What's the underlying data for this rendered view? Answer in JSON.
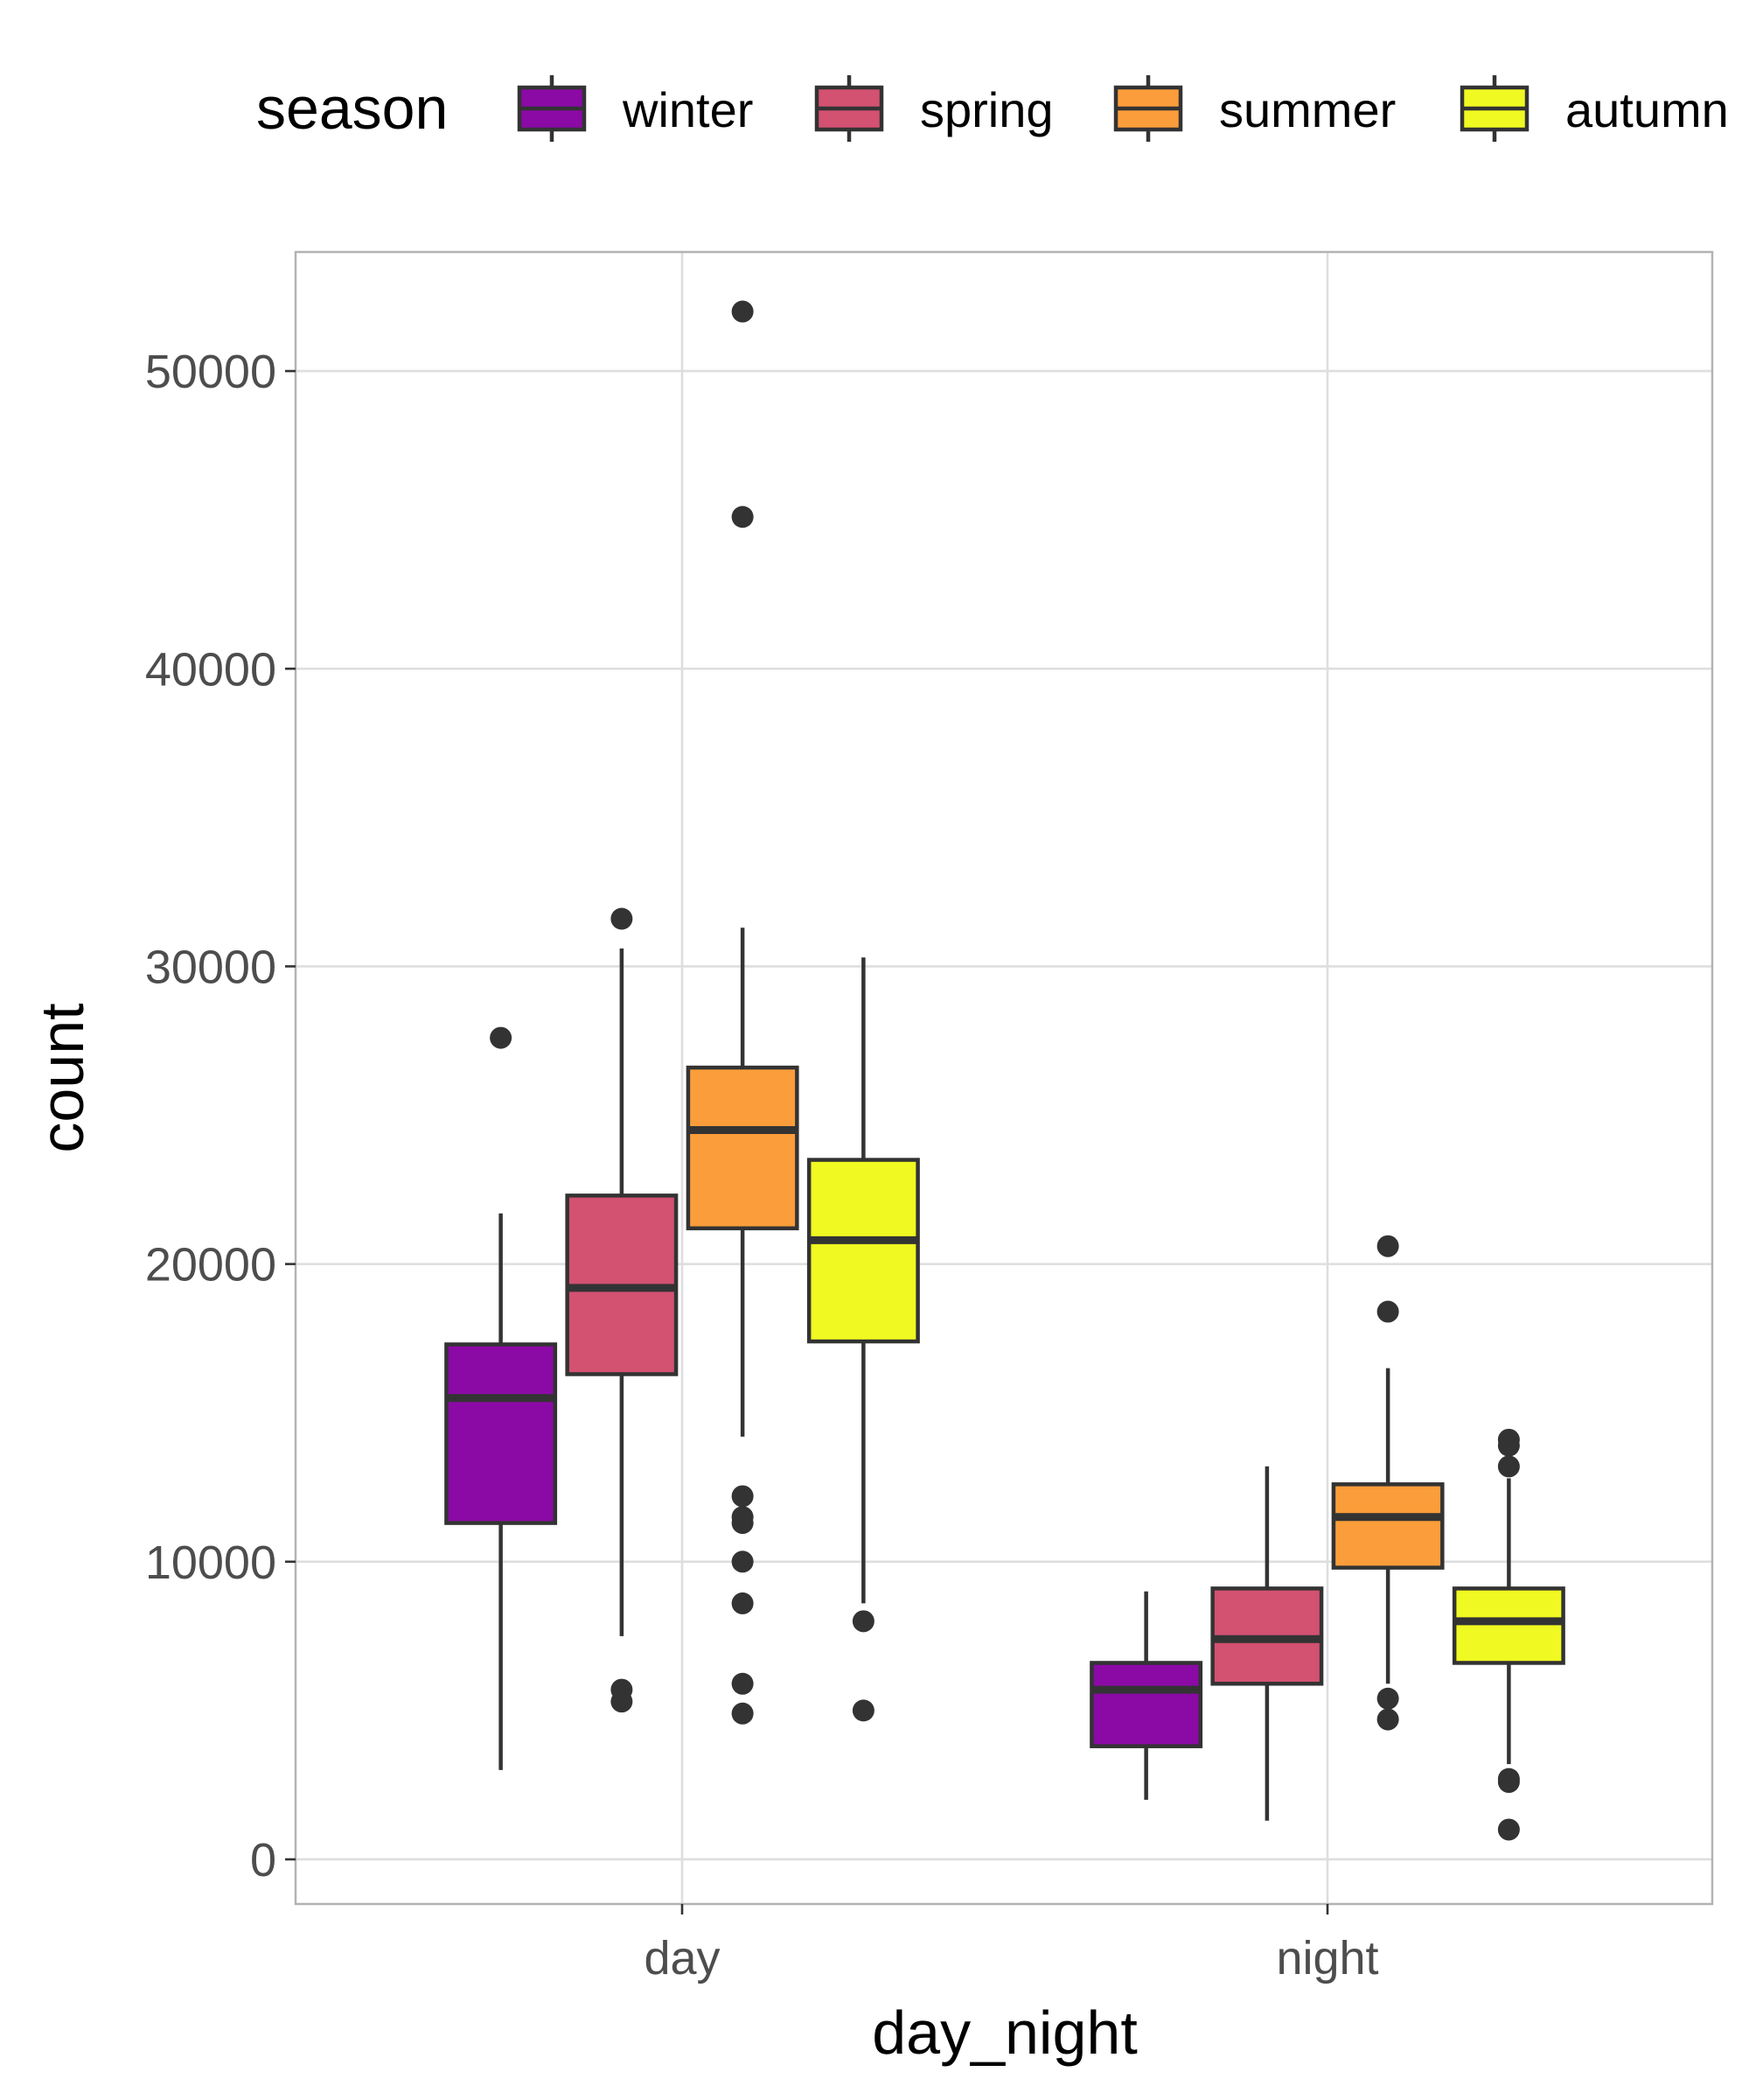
{
  "chart_data": {
    "type": "boxplot",
    "xlabel": "day_night",
    "ylabel": "count",
    "categories": [
      "day",
      "night"
    ],
    "ylim": [
      -1500,
      54000
    ],
    "yticks": [
      0,
      10000,
      20000,
      30000,
      40000,
      50000
    ],
    "grid": true,
    "legend": {
      "title": "season",
      "position": "top",
      "items": [
        {
          "name": "winter",
          "color": "#8b0aa5"
        },
        {
          "name": "spring",
          "color": "#d35171"
        },
        {
          "name": "summer",
          "color": "#fa9d3a"
        },
        {
          "name": "autumn",
          "color": "#f0f921"
        }
      ]
    },
    "series": [
      {
        "name": "winter",
        "color": "#8b0aa5",
        "boxes": [
          {
            "category": "day",
            "whisker_low": 3000,
            "q1": 11300,
            "median": 15500,
            "q3": 17300,
            "whisker_high": 21700,
            "outliers": [
              27600
            ]
          },
          {
            "category": "night",
            "whisker_low": 2000,
            "q1": 3800,
            "median": 5700,
            "q3": 6600,
            "whisker_high": 9000,
            "outliers": []
          }
        ]
      },
      {
        "name": "spring",
        "color": "#d35171",
        "boxes": [
          {
            "category": "day",
            "whisker_low": 7500,
            "q1": 16300,
            "median": 19200,
            "q3": 22300,
            "whisker_high": 30600,
            "outliers": [
              31600,
              5700,
              5300
            ]
          },
          {
            "category": "night",
            "whisker_low": 1300,
            "q1": 5900,
            "median": 7400,
            "q3": 9100,
            "whisker_high": 13200,
            "outliers": []
          }
        ]
      },
      {
        "name": "summer",
        "color": "#fa9d3a",
        "boxes": [
          {
            "category": "day",
            "whisker_low": 14200,
            "q1": 21200,
            "median": 24500,
            "q3": 26600,
            "whisker_high": 31300,
            "outliers": [
              52000,
              45100,
              12200,
              11500,
              11300,
              10000,
              8600,
              5900,
              4900
            ]
          },
          {
            "category": "night",
            "whisker_low": 5900,
            "q1": 9800,
            "median": 11500,
            "q3": 12600,
            "whisker_high": 16500,
            "outliers": [
              20600,
              18400,
              5400,
              4700
            ]
          }
        ]
      },
      {
        "name": "autumn",
        "color": "#f0f921",
        "boxes": [
          {
            "category": "day",
            "whisker_low": 8600,
            "q1": 17400,
            "median": 20800,
            "q3": 23500,
            "whisker_high": 30300,
            "outliers": [
              8000,
              5000
            ]
          },
          {
            "category": "night",
            "whisker_low": 3200,
            "q1": 6600,
            "median": 8000,
            "q3": 9100,
            "whisker_high": 12800,
            "outliers": [
              14100,
              13900,
              13200,
              2700,
              2600,
              1000
            ]
          }
        ]
      }
    ]
  }
}
